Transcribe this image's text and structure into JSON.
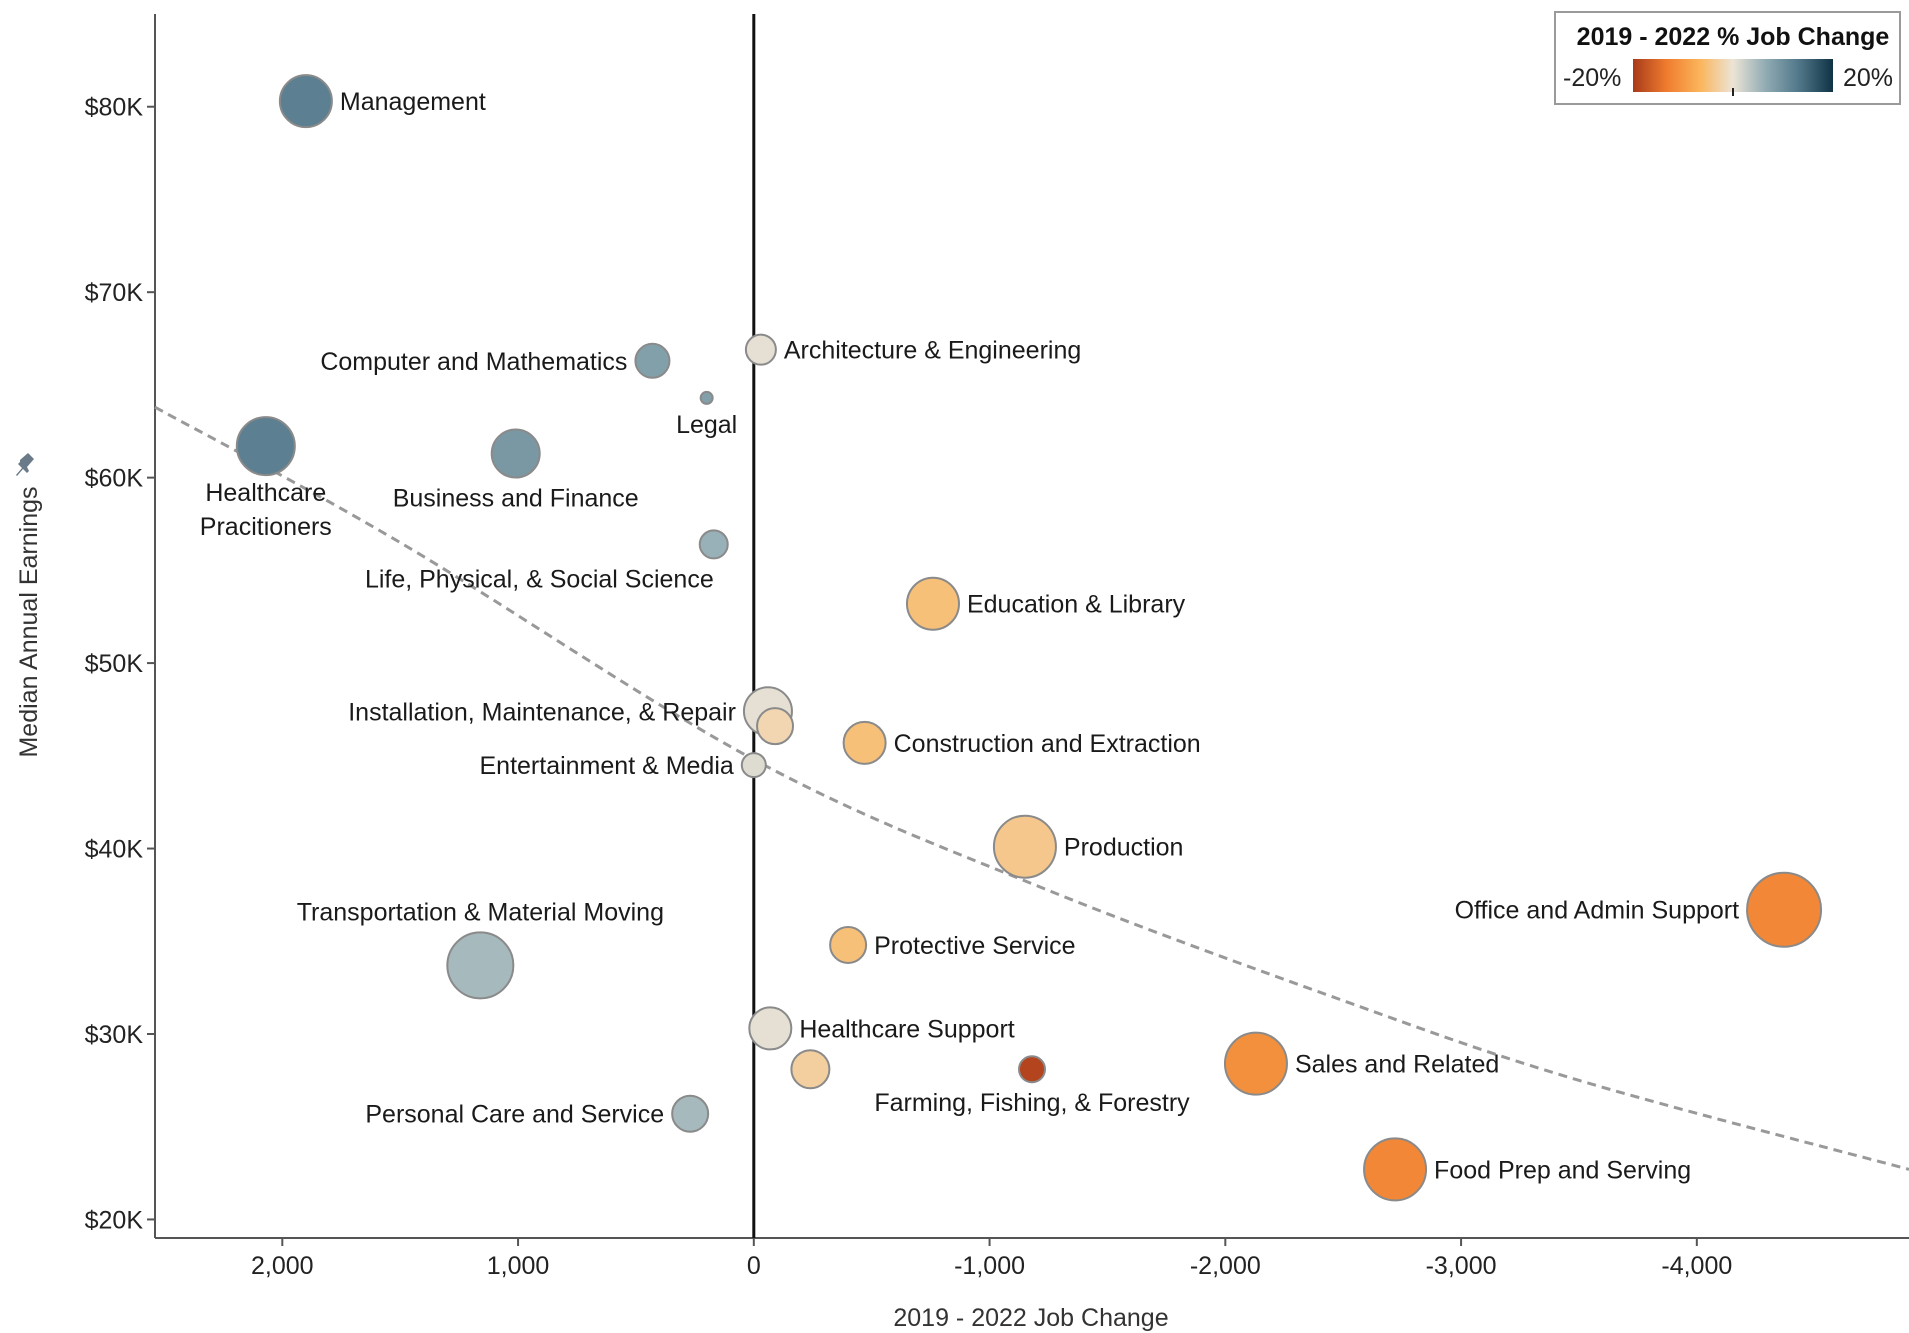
{
  "chart_data": {
    "type": "scatter",
    "xlabel": "2019 - 2022 Job Change",
    "ylabel": "Median Annual Earnings",
    "xlim": [
      2540,
      -4900
    ],
    "ylim": [
      19000,
      85000
    ],
    "x_reversed": true,
    "x_ticks": [
      {
        "value": 2000,
        "label": "2,000"
      },
      {
        "value": 1000,
        "label": "1,000"
      },
      {
        "value": 0,
        "label": "0"
      },
      {
        "value": -1000,
        "label": "-1,000"
      },
      {
        "value": -2000,
        "label": "-2,000"
      },
      {
        "value": -3000,
        "label": "-3,000"
      },
      {
        "value": -4000,
        "label": "-4,000"
      }
    ],
    "y_ticks": [
      {
        "value": 20000,
        "label": "$20K"
      },
      {
        "value": 30000,
        "label": "$30K"
      },
      {
        "value": 40000,
        "label": "$40K"
      },
      {
        "value": 50000,
        "label": "$50K"
      },
      {
        "value": 60000,
        "label": "$60K"
      },
      {
        "value": 70000,
        "label": "$70K"
      },
      {
        "value": 80000,
        "label": "$80K"
      }
    ],
    "grid": false,
    "reference_line_x": 0,
    "trendline": {
      "style": "dashed",
      "color": "#999999",
      "points": [
        [
          2540,
          63800
        ],
        [
          1500,
          56500
        ],
        [
          0,
          44800
        ],
        [
          -1200,
          38000
        ],
        [
          -2500,
          31800
        ],
        [
          -3500,
          27500
        ],
        [
          -4900,
          22700
        ]
      ]
    },
    "size_encoding": "relative employment (visual only)",
    "color_encoding": {
      "title": "2019 - 2022 % Job Change",
      "min_label": "-20%",
      "max_label": "20%",
      "min": -20,
      "max": 20,
      "stops": [
        "#a83a1a",
        "#ef7c2e",
        "#fbb45a",
        "#ece4d6",
        "#8faab3",
        "#4f7688",
        "#0f3344"
      ],
      "legend_position": "top-right"
    },
    "points": [
      {
        "label": "Management",
        "x": 1900,
        "y": 80300,
        "pct": 12,
        "size": 26,
        "label_side": "right"
      },
      {
        "label": "Computer and Mathematics",
        "x": 430,
        "y": 66300,
        "pct": 8,
        "size": 17,
        "label_side": "left"
      },
      {
        "label": "Architecture & Engineering",
        "x": -30,
        "y": 66900,
        "pct": 0.5,
        "size": 15,
        "label_side": "right"
      },
      {
        "label": "Legal",
        "x": 200,
        "y": 64300,
        "pct": 8,
        "size": 6,
        "label_side": "below"
      },
      {
        "label": "Healthcare Pracitioners",
        "x": 2070,
        "y": 61700,
        "pct": 12,
        "size": 29,
        "label_side": "below2"
      },
      {
        "label": "Business and Finance",
        "x": 1010,
        "y": 61300,
        "pct": 9,
        "size": 24,
        "label_side": "below"
      },
      {
        "label": "Life, Physical, & Social Science",
        "x": 170,
        "y": 56400,
        "pct": 6,
        "size": 14,
        "label_side": "below_left"
      },
      {
        "label": "Education & Library",
        "x": -760,
        "y": 53200,
        "pct": -5,
        "size": 26,
        "label_side": "right"
      },
      {
        "label": "Installation, Maintenance, & Repair",
        "x": -60,
        "y": 47400,
        "pct": 0.5,
        "size": 24,
        "label_side": "left"
      },
      {
        "label": "",
        "x": -90,
        "y": 46600,
        "pct": -2,
        "size": 18,
        "label_side": "none"
      },
      {
        "label": "Construction and Extraction",
        "x": -470,
        "y": 45700,
        "pct": -5,
        "size": 21,
        "label_side": "right"
      },
      {
        "label": "Entertainment & Media",
        "x": 0,
        "y": 44500,
        "pct": 1,
        "size": 12,
        "label_side": "left"
      },
      {
        "label": "Production",
        "x": -1150,
        "y": 40100,
        "pct": -4,
        "size": 31,
        "label_side": "right"
      },
      {
        "label": "Office and Admin Support",
        "x": -4370,
        "y": 36700,
        "pct": -12,
        "size": 37,
        "label_side": "left"
      },
      {
        "label": "Transportation & Material Moving",
        "x": 1160,
        "y": 33700,
        "pct": 5,
        "size": 33,
        "label_side": "above"
      },
      {
        "label": "Protective Service",
        "x": -400,
        "y": 34800,
        "pct": -5,
        "size": 18,
        "label_side": "right"
      },
      {
        "label": "Healthcare Support",
        "x": -70,
        "y": 30300,
        "pct": 0.5,
        "size": 21,
        "label_side": "right"
      },
      {
        "label": "",
        "x": -240,
        "y": 28100,
        "pct": -3,
        "size": 19,
        "label_side": "none"
      },
      {
        "label": "Farming, Fishing, & Forestry",
        "x": -1180,
        "y": 28100,
        "pct": -19,
        "size": 13,
        "label_side": "below"
      },
      {
        "label": "Sales and Related",
        "x": -2130,
        "y": 28400,
        "pct": -11,
        "size": 31,
        "label_side": "right"
      },
      {
        "label": "Personal Care and Service",
        "x": 270,
        "y": 25700,
        "pct": 5,
        "size": 18,
        "label_side": "left"
      },
      {
        "label": "Food Prep and Serving",
        "x": -2720,
        "y": 22700,
        "pct": -12,
        "size": 31,
        "label_side": "right"
      }
    ]
  }
}
